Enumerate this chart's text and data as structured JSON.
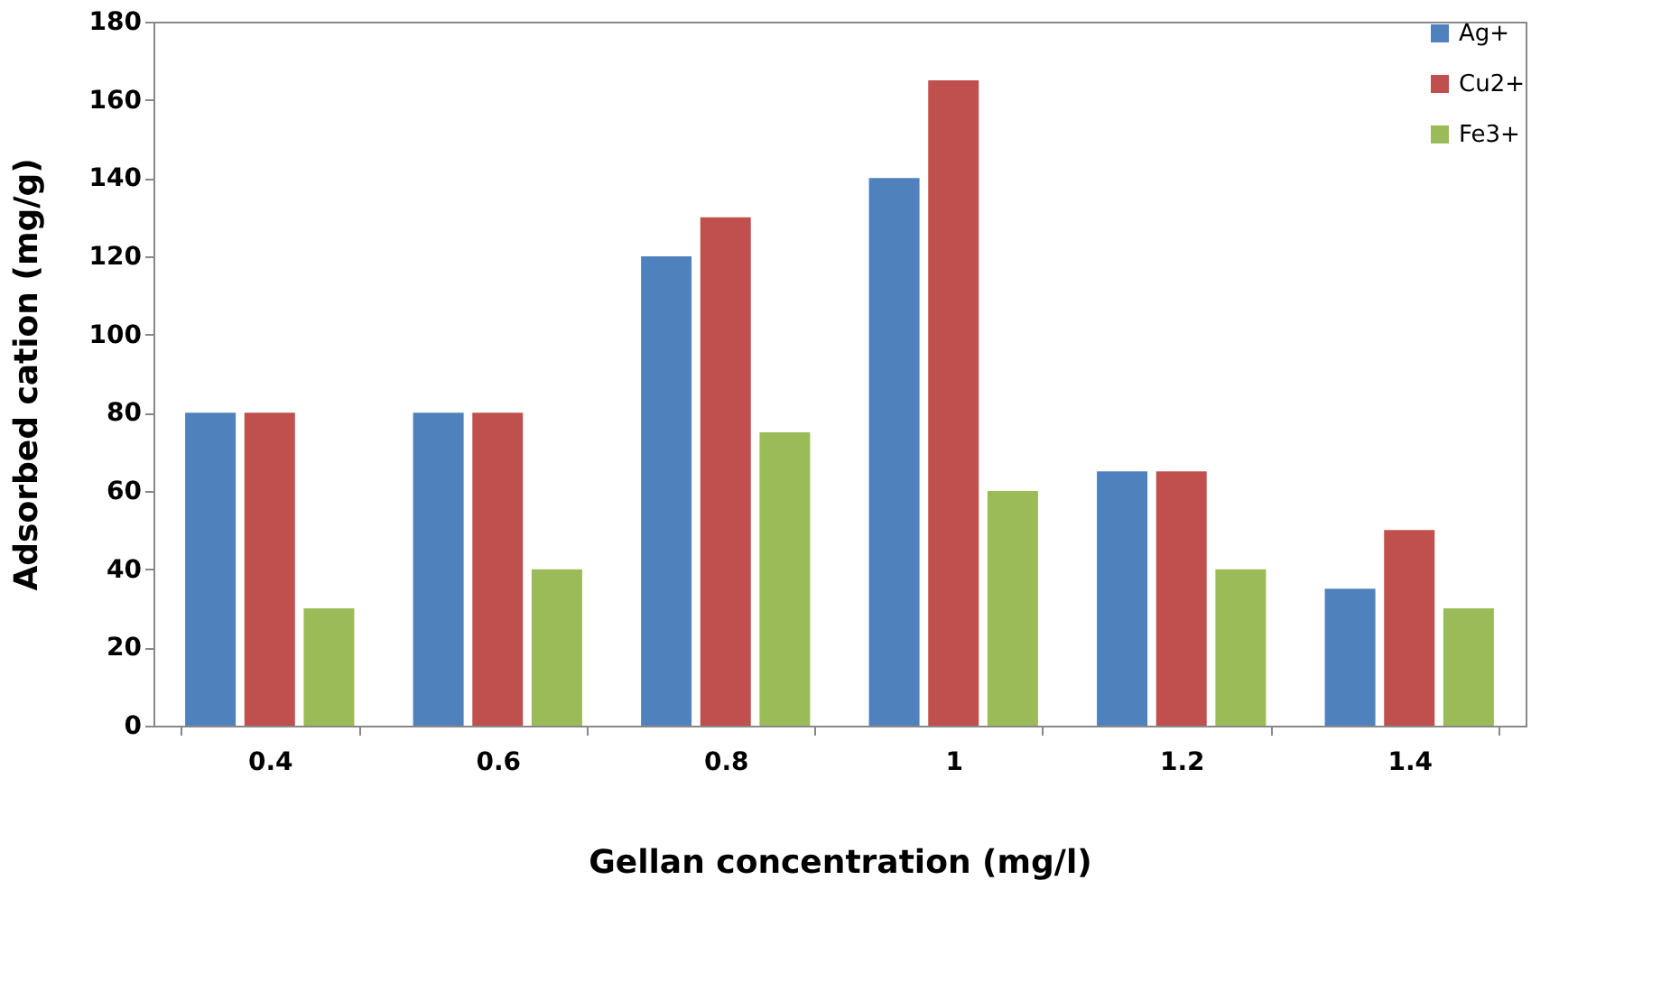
{
  "chart_data": {
    "type": "bar",
    "xlabel": "Gellan concentration (mg/l)",
    "ylabel": "Adsorbed cation (mg/g)",
    "categories": [
      "0.4",
      "0.6",
      "0.8",
      "1",
      "1.2",
      "1.4"
    ],
    "series": [
      {
        "name": "Ag+",
        "color": "#4f81bd",
        "values": [
          80,
          80,
          120,
          140,
          65,
          35
        ]
      },
      {
        "name": "Cu2+",
        "color": "#c0504d",
        "values": [
          80,
          80,
          130,
          165,
          65,
          50
        ]
      },
      {
        "name": "Fe3+",
        "color": "#9bbb59",
        "values": [
          30,
          40,
          75,
          60,
          40,
          30
        ]
      }
    ],
    "ylim": [
      0,
      180
    ],
    "yticks": [
      0,
      20,
      40,
      60,
      80,
      100,
      120,
      140,
      160,
      180
    ],
    "grid": false,
    "legend": "top right"
  }
}
